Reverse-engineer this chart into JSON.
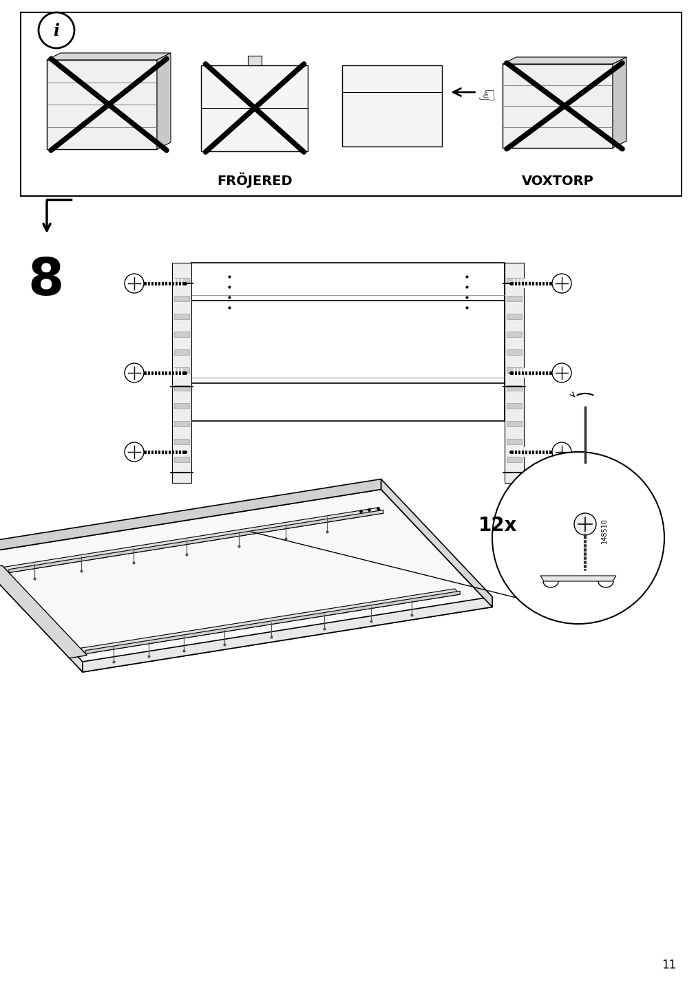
{
  "page_number": "11",
  "background_color": "#ffffff",
  "line_color": "#000000",
  "labels": {
    "frojered": "FRÖJERED",
    "voxtorp": "VOXTORP",
    "step": "8",
    "quantity": "12x",
    "part_number": "148510"
  }
}
